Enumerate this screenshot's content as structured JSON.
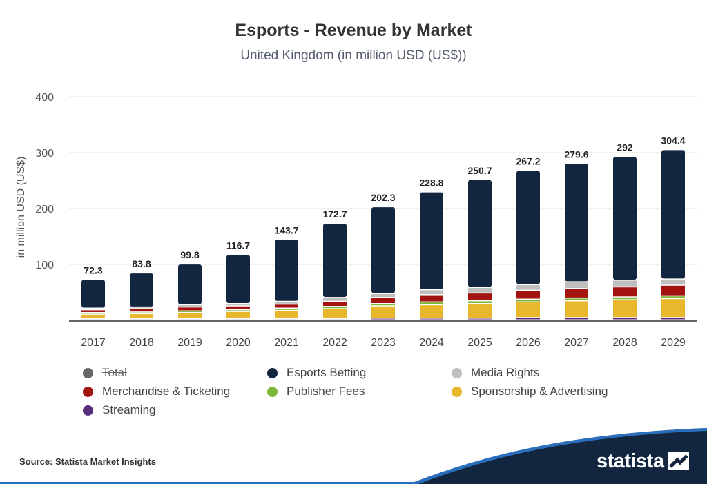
{
  "title": "Esports - Revenue by Market",
  "subtitle": "United Kingdom (in million USD (US$))",
  "source": "Source: Statista Market Insights",
  "brand": "statista",
  "colors": {
    "Esports Betting": "#13263f",
    "Media Rights": "#bfbfbf",
    "Merchandise & Ticketing": "#a3130f",
    "Publisher Fees": "#7db83a",
    "Sponsorship & Advertising": "#e8b72c",
    "Streaming": "#5a2d7d",
    "Total": "#666666"
  },
  "legend": [
    {
      "label": "Total",
      "hidden": true
    },
    {
      "label": "Esports Betting",
      "hidden": false
    },
    {
      "label": "Media Rights",
      "hidden": false
    },
    {
      "label": "Merchandise & Ticketing",
      "hidden": false
    },
    {
      "label": "Publisher Fees",
      "hidden": false
    },
    {
      "label": "Sponsorship & Advertising",
      "hidden": false
    },
    {
      "label": "Streaming",
      "hidden": false
    }
  ],
  "chart_data": {
    "type": "bar",
    "stacked": true,
    "title": "Esports - Revenue by Market",
    "subtitle": "United Kingdom (in million USD (US$))",
    "xlabel": "",
    "ylabel": "in million USD (US$)",
    "ylim": [
      0,
      400
    ],
    "yticks": [
      100,
      200,
      300,
      400
    ],
    "grid": true,
    "categories": [
      "2017",
      "2018",
      "2019",
      "2020",
      "2021",
      "2022",
      "2023",
      "2024",
      "2025",
      "2026",
      "2027",
      "2028",
      "2029"
    ],
    "totals": [
      72.3,
      83.8,
      99.8,
      116.7,
      143.7,
      172.7,
      202.3,
      228.8,
      250.7,
      267.2,
      279.6,
      292,
      304.4
    ],
    "total_labels": [
      "72.3",
      "83.8",
      "99.8",
      "116.7",
      "143.7",
      "172.7",
      "202.3",
      "228.8",
      "250.7",
      "267.2",
      "279.6",
      "292",
      "304.4"
    ],
    "series": [
      {
        "name": "Streaming",
        "values": [
          2,
          2,
          2,
          2,
          2,
          2,
          3,
          3,
          3,
          4,
          4,
          4,
          4
        ]
      },
      {
        "name": "Sponsorship & Advertising",
        "values": [
          8,
          9,
          11,
          13,
          15,
          18,
          22,
          24,
          26,
          28,
          30,
          32,
          34
        ]
      },
      {
        "name": "Publisher Fees",
        "values": [
          3,
          3,
          3,
          3,
          4,
          4,
          4,
          5,
          5,
          5,
          5,
          5,
          5
        ]
      },
      {
        "name": "Merchandise & Ticketing",
        "values": [
          5,
          6,
          7,
          7,
          7,
          9,
          11,
          13,
          14,
          16,
          17,
          18,
          19
        ]
      },
      {
        "name": "Media Rights",
        "values": [
          3,
          3,
          4,
          4,
          5,
          7,
          7,
          9,
          10,
          10,
          12,
          12,
          11
        ]
      },
      {
        "name": "Esports Betting",
        "values": [
          51.3,
          60.8,
          72.8,
          87.7,
          110.7,
          132.7,
          155.3,
          174.8,
          192.7,
          204.2,
          211.6,
          221,
          231.4
        ]
      }
    ]
  }
}
